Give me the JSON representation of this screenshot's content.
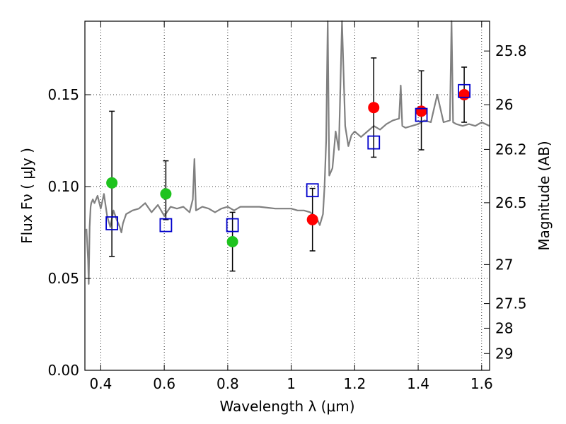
{
  "chart_data": {
    "type": "scatter",
    "xlabel": "Wavelength  λ (μm)",
    "ylabel": "Flux  Fν  ( μJy )",
    "ylabel_right": "Magnitude (AB)",
    "xlim": [
      0.35,
      1.625
    ],
    "ylim": [
      0.0,
      0.19
    ],
    "grid": true,
    "x_ticks": [
      0.4,
      0.6,
      0.8,
      1.0,
      1.2,
      1.4,
      1.6
    ],
    "x_tick_labels": [
      "0.4",
      "0.6",
      "0.8",
      "1",
      "1.2",
      "1.4",
      "1.6"
    ],
    "y_ticks": [
      0.0,
      0.05,
      0.1,
      0.15
    ],
    "y_tick_labels": [
      "0.00",
      "0.05",
      "0.10",
      "0.15"
    ],
    "mag_ticks": [
      25.8,
      26.0,
      26.2,
      26.5,
      27.0,
      27.5,
      28.0,
      29.0
    ],
    "mag_tick_labels": [
      "25.8",
      "26",
      "26.2",
      "26.5",
      "27",
      "27.5",
      "28",
      "29"
    ],
    "series": [
      {
        "kind": "line",
        "color": "#808080",
        "x": [
          0.355,
          0.36,
          0.362,
          0.365,
          0.368,
          0.37,
          0.375,
          0.38,
          0.39,
          0.4,
          0.41,
          0.42,
          0.425,
          0.43,
          0.44,
          0.45,
          0.46,
          0.465,
          0.47,
          0.48,
          0.5,
          0.52,
          0.54,
          0.56,
          0.58,
          0.6,
          0.62,
          0.64,
          0.66,
          0.68,
          0.69,
          0.695,
          0.7,
          0.72,
          0.74,
          0.76,
          0.78,
          0.8,
          0.82,
          0.84,
          0.86,
          0.9,
          0.95,
          1.0,
          1.02,
          1.04,
          1.06,
          1.08,
          1.09,
          1.1,
          1.105,
          1.11,
          1.115,
          1.12,
          1.13,
          1.14,
          1.15,
          1.16,
          1.17,
          1.18,
          1.19,
          1.2,
          1.22,
          1.24,
          1.26,
          1.28,
          1.3,
          1.32,
          1.34,
          1.345,
          1.35,
          1.36,
          1.38,
          1.4,
          1.42,
          1.44,
          1.46,
          1.48,
          1.5,
          1.505,
          1.51,
          1.52,
          1.54,
          1.56,
          1.58,
          1.6,
          1.625
        ],
        "y": [
          0.077,
          0.06,
          0.047,
          0.078,
          0.089,
          0.091,
          0.093,
          0.091,
          0.095,
          0.088,
          0.096,
          0.084,
          0.081,
          0.078,
          0.087,
          0.082,
          0.078,
          0.075,
          0.08,
          0.085,
          0.087,
          0.088,
          0.091,
          0.086,
          0.09,
          0.084,
          0.089,
          0.088,
          0.089,
          0.086,
          0.093,
          0.115,
          0.087,
          0.089,
          0.088,
          0.086,
          0.088,
          0.089,
          0.087,
          0.089,
          0.089,
          0.089,
          0.088,
          0.088,
          0.087,
          0.087,
          0.086,
          0.083,
          0.079,
          0.085,
          0.1,
          0.125,
          0.19,
          0.106,
          0.11,
          0.13,
          0.12,
          0.19,
          0.133,
          0.122,
          0.128,
          0.13,
          0.127,
          0.13,
          0.133,
          0.131,
          0.134,
          0.136,
          0.137,
          0.155,
          0.133,
          0.132,
          0.133,
          0.134,
          0.136,
          0.135,
          0.15,
          0.135,
          0.136,
          0.19,
          0.135,
          0.134,
          0.133,
          0.134,
          0.133,
          0.135,
          0.133
        ]
      },
      {
        "kind": "errorbar",
        "color": "#000000",
        "x": [
          0.435,
          0.605,
          0.815,
          1.067,
          1.26,
          1.41,
          1.545
        ],
        "low": [
          0.062,
          0.082,
          0.054,
          0.065,
          0.116,
          0.12,
          0.135
        ],
        "high": [
          0.141,
          0.114,
          0.086,
          0.099,
          0.17,
          0.163,
          0.165
        ]
      },
      {
        "kind": "scatter",
        "marker": "circle",
        "color": "#1ec31e",
        "x": [
          0.435,
          0.605,
          0.815
        ],
        "y": [
          0.102,
          0.096,
          0.07
        ]
      },
      {
        "kind": "scatter",
        "marker": "circle",
        "color": "#ff0000",
        "x": [
          1.067,
          1.26,
          1.41,
          1.545
        ],
        "y": [
          0.082,
          0.143,
          0.141,
          0.15
        ]
      },
      {
        "kind": "scatter",
        "marker": "square-open",
        "color": "#0000cc",
        "x": [
          0.435,
          0.605,
          0.815,
          1.067,
          1.26,
          1.41,
          1.545
        ],
        "y": [
          0.08,
          0.079,
          0.079,
          0.098,
          0.124,
          0.139,
          0.152
        ]
      }
    ]
  }
}
